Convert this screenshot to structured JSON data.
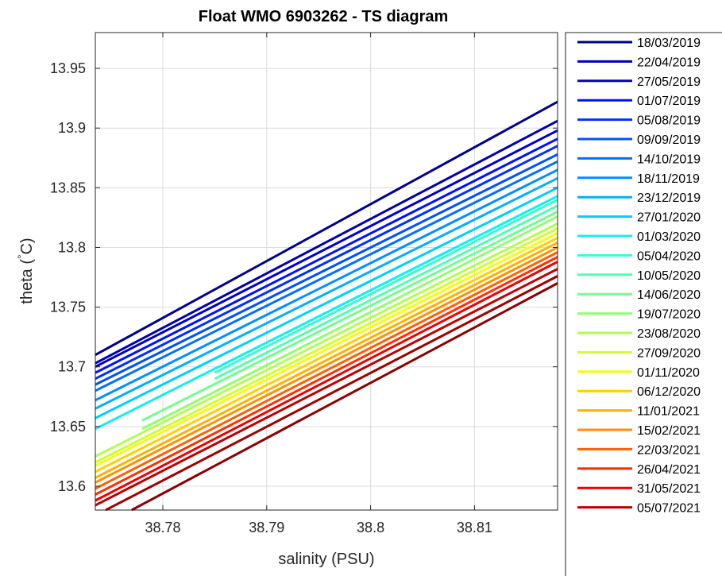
{
  "chart_data": {
    "type": "line",
    "title": "Float WMO 6903262 - TS diagram",
    "xlabel": "salinity (PSU)",
    "ylabel_main": "theta (",
    "ylabel_degree": "°",
    "ylabel_unit": "C)",
    "xlim": [
      38.7735,
      38.818
    ],
    "ylim": [
      13.58,
      13.98
    ],
    "xticks": [
      38.78,
      38.79,
      38.8,
      38.81
    ],
    "xtick_labels": [
      "38.78",
      "38.79",
      "38.8",
      "38.81"
    ],
    "yticks": [
      13.6,
      13.65,
      13.7,
      13.75,
      13.8,
      13.85,
      13.9,
      13.95
    ],
    "ytick_labels": [
      "13.6",
      "13.65",
      "13.7",
      "13.75",
      "13.8",
      "13.85",
      "13.9",
      "13.95"
    ],
    "grid": true,
    "legend_position": "right-outside",
    "series": [
      {
        "name": "18/03/2019",
        "color": "#00008f",
        "x": [
          38.7735,
          38.818
        ],
        "y": [
          13.71,
          13.922
        ]
      },
      {
        "name": "22/04/2019",
        "color": "#0000ad",
        "x": [
          38.7735,
          38.818
        ],
        "y": [
          13.703,
          13.906
        ]
      },
      {
        "name": "27/05/2019",
        "color": "#0000cc",
        "x": [
          38.7735,
          38.818
        ],
        "y": [
          13.7,
          13.898
        ]
      },
      {
        "name": "01/07/2019",
        "color": "#0010ff",
        "x": [
          38.7735,
          38.818
        ],
        "y": [
          13.695,
          13.891
        ]
      },
      {
        "name": "05/08/2019",
        "color": "#0030ff",
        "x": [
          38.7735,
          38.818
        ],
        "y": [
          13.69,
          13.885
        ]
      },
      {
        "name": "09/09/2019",
        "color": "#0050ff",
        "x": [
          38.7735,
          38.818
        ],
        "y": [
          13.685,
          13.878
        ]
      },
      {
        "name": "14/10/2019",
        "color": "#0070ff",
        "x": [
          38.7735,
          38.818
        ],
        "y": [
          13.68,
          13.872
        ]
      },
      {
        "name": "18/11/2019",
        "color": "#0090ff",
        "x": [
          38.7735,
          38.818
        ],
        "y": [
          13.672,
          13.865
        ]
      },
      {
        "name": "23/12/2019",
        "color": "#00b0ff",
        "x": [
          38.7735,
          38.818
        ],
        "y": [
          13.665,
          13.858
        ]
      },
      {
        "name": "27/01/2020",
        "color": "#00d0ff",
        "x": [
          38.7735,
          38.818
        ],
        "y": [
          13.657,
          13.85
        ]
      },
      {
        "name": "01/03/2020",
        "color": "#10f0ef",
        "x": [
          38.7735,
          38.818
        ],
        "y": [
          13.648,
          13.843
        ]
      },
      {
        "name": "05/04/2020",
        "color": "#30ffcf",
        "x": [
          38.785,
          38.818
        ],
        "y": [
          13.695,
          13.84
        ]
      },
      {
        "name": "10/05/2020",
        "color": "#50ffaf",
        "x": [
          38.785,
          38.818
        ],
        "y": [
          13.69,
          13.835
        ]
      },
      {
        "name": "14/06/2020",
        "color": "#70ff8f",
        "x": [
          38.778,
          38.818
        ],
        "y": [
          13.655,
          13.83
        ]
      },
      {
        "name": "19/07/2020",
        "color": "#90ff6f",
        "x": [
          38.778,
          38.818
        ],
        "y": [
          13.648,
          13.826
        ]
      },
      {
        "name": "23/08/2020",
        "color": "#b0ff4f",
        "x": [
          38.7735,
          38.818
        ],
        "y": [
          13.625,
          13.82
        ]
      },
      {
        "name": "27/09/2020",
        "color": "#d0ff2f",
        "x": [
          38.7735,
          38.818
        ],
        "y": [
          13.62,
          13.816
        ]
      },
      {
        "name": "01/11/2020",
        "color": "#f0ff0f",
        "x": [
          38.7735,
          38.818
        ],
        "y": [
          13.617,
          13.812
        ]
      },
      {
        "name": "06/12/2020",
        "color": "#ffd000",
        "x": [
          38.7735,
          38.818
        ],
        "y": [
          13.612,
          13.808
        ]
      },
      {
        "name": "11/01/2021",
        "color": "#ffb000",
        "x": [
          38.7735,
          38.818
        ],
        "y": [
          13.607,
          13.804
        ]
      },
      {
        "name": "15/02/2021",
        "color": "#ff9000",
        "x": [
          38.7735,
          38.818
        ],
        "y": [
          13.603,
          13.8
        ]
      },
      {
        "name": "22/03/2021",
        "color": "#ff6000",
        "x": [
          38.7735,
          38.818
        ],
        "y": [
          13.598,
          13.796
        ]
      },
      {
        "name": "26/04/2021",
        "color": "#ff3000",
        "x": [
          38.7735,
          38.818
        ],
        "y": [
          13.593,
          13.792
        ]
      },
      {
        "name": "31/05/2021",
        "color": "#f00000",
        "x": [
          38.7735,
          38.818
        ],
        "y": [
          13.588,
          13.788
        ]
      },
      {
        "name": "05/07/2021",
        "color": "#c00000",
        "x": [
          38.7735,
          38.818
        ],
        "y": [
          13.584,
          13.782
        ]
      },
      {
        "name": "",
        "color": "#a00000",
        "x": [
          38.7745,
          38.818
        ],
        "y": [
          13.58,
          13.776
        ]
      },
      {
        "name": "",
        "color": "#8c0000",
        "x": [
          38.777,
          38.818
        ],
        "y": [
          13.58,
          13.77
        ]
      }
    ]
  }
}
